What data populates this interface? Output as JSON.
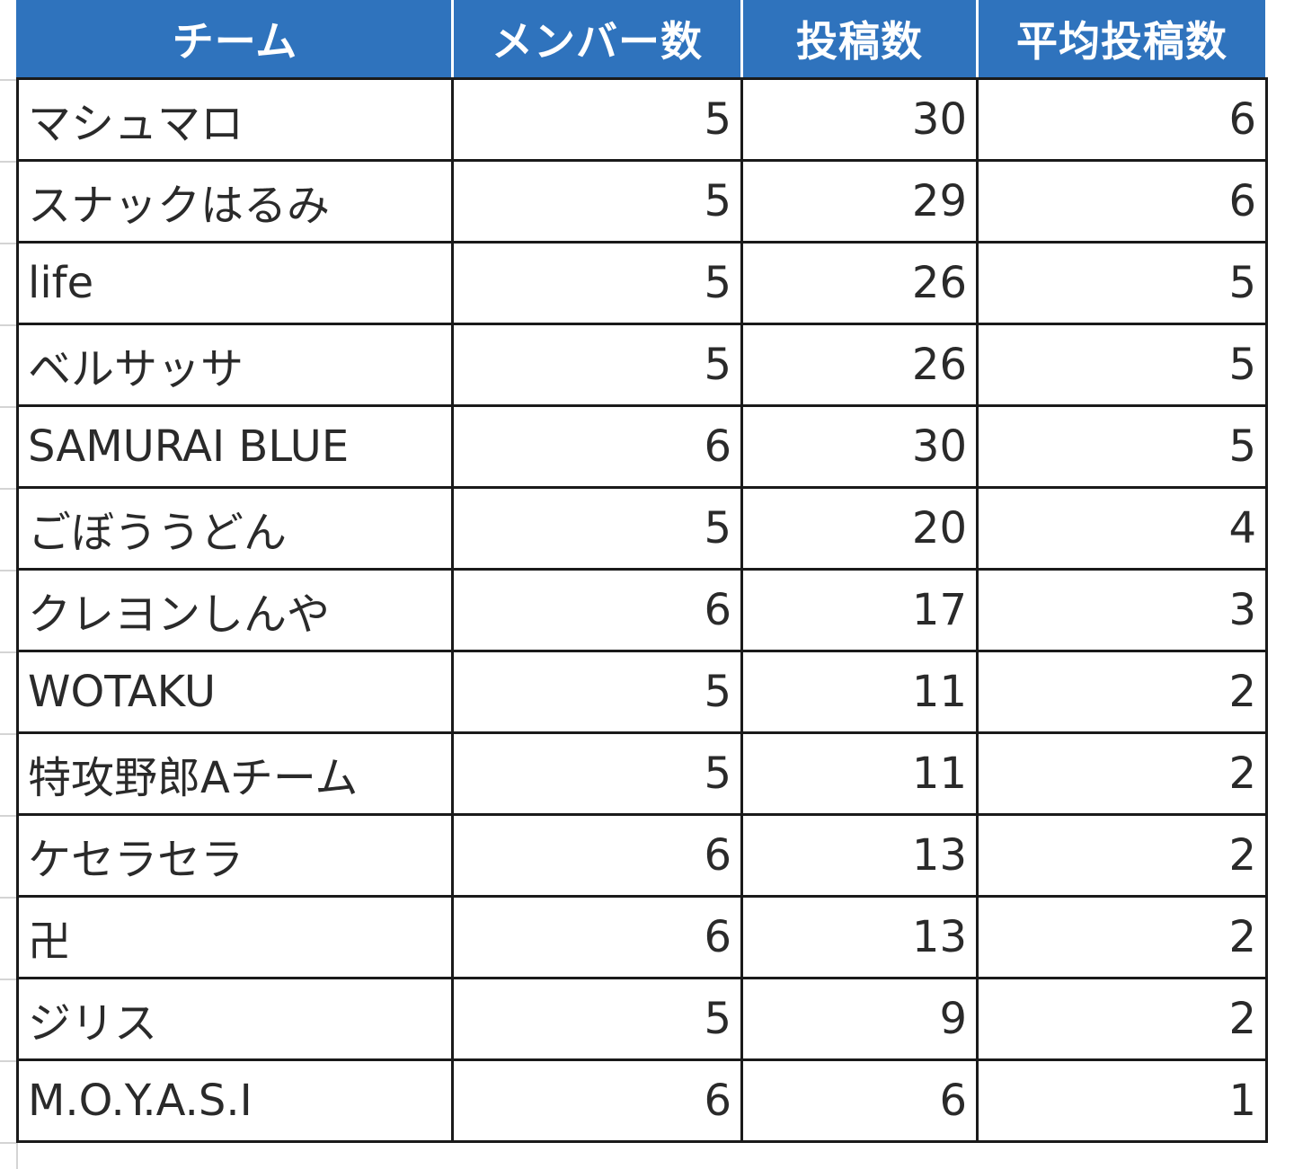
{
  "table": {
    "headers": {
      "team": "チーム",
      "members": "メンバー数",
      "posts": "投稿数",
      "avg_posts": "平均投稿数"
    },
    "rows": [
      {
        "team": "マシュマロ",
        "members": "5",
        "posts": "30",
        "avg_posts": "6"
      },
      {
        "team": "スナックはるみ",
        "members": "5",
        "posts": "29",
        "avg_posts": "6"
      },
      {
        "team": "life",
        "members": "5",
        "posts": "26",
        "avg_posts": "5"
      },
      {
        "team": "ベルサッサ",
        "members": "5",
        "posts": "26",
        "avg_posts": "5"
      },
      {
        "team": "SAMURAI BLUE",
        "members": "6",
        "posts": "30",
        "avg_posts": "5"
      },
      {
        "team": "ごぼううどん",
        "members": "5",
        "posts": "20",
        "avg_posts": "4"
      },
      {
        "team": "クレヨンしんや",
        "members": "6",
        "posts": "17",
        "avg_posts": "3"
      },
      {
        "team": "WOTAKU",
        "members": "5",
        "posts": "11",
        "avg_posts": "2"
      },
      {
        "team": "特攻野郎Aチーム",
        "members": "5",
        "posts": "11",
        "avg_posts": "2"
      },
      {
        "team": "ケセラセラ",
        "members": "6",
        "posts": "13",
        "avg_posts": "2"
      },
      {
        "team": "卍",
        "members": "6",
        "posts": "13",
        "avg_posts": "2"
      },
      {
        "team": "ジリス",
        "members": "5",
        "posts": "9",
        "avg_posts": "2"
      },
      {
        "team": "M.O.Y.A.S.I",
        "members": "6",
        "posts": "6",
        "avg_posts": "1"
      }
    ]
  },
  "colors": {
    "header_bg": "#2f73bd",
    "header_text": "#ffffff",
    "border": "#1a1a1a",
    "gridline": "#d4d4d4"
  }
}
